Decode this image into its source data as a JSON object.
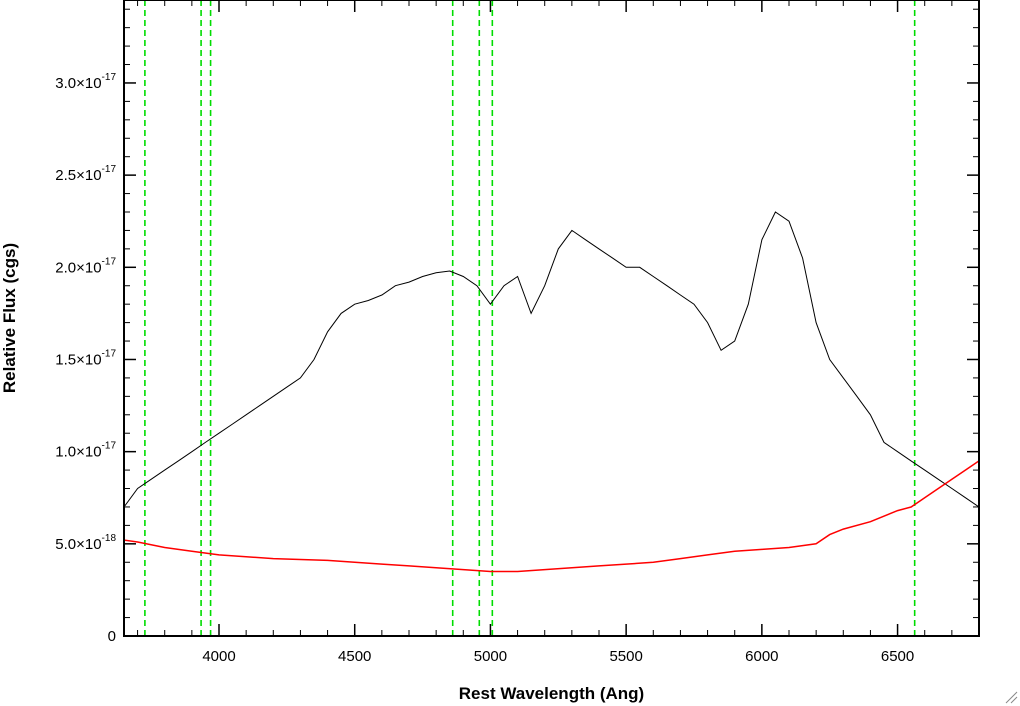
{
  "chart_data": {
    "type": "line",
    "title": "",
    "xlabel": "Rest Wavelength (Ang)",
    "ylabel": "Relative Flux (cgs)",
    "xlim": [
      3650,
      6800
    ],
    "ylim": [
      0,
      3.45e-17
    ],
    "x_ticks": [
      {
        "value": 4000,
        "label": "4000"
      },
      {
        "value": 4500,
        "label": "4500"
      },
      {
        "value": 5000,
        "label": "5000"
      },
      {
        "value": 5500,
        "label": "5500"
      },
      {
        "value": 6000,
        "label": "6000"
      },
      {
        "value": 6500,
        "label": "6500"
      }
    ],
    "y_ticks": [
      {
        "value": 0,
        "mantissa": "0",
        "exponent": ""
      },
      {
        "value": 5e-18,
        "mantissa": "5.0×10",
        "exponent": "-18"
      },
      {
        "value": 1e-17,
        "mantissa": "1.0×10",
        "exponent": "-17"
      },
      {
        "value": 1.5e-17,
        "mantissa": "1.5×10",
        "exponent": "-17"
      },
      {
        "value": 2e-17,
        "mantissa": "2.0×10",
        "exponent": "-17"
      },
      {
        "value": 2.5e-17,
        "mantissa": "2.5×10",
        "exponent": "-17"
      },
      {
        "value": 3e-17,
        "mantissa": "3.0×10",
        "exponent": "-17"
      }
    ],
    "grid": false,
    "legend": "none",
    "reference_lines": {
      "color": "#00dd00",
      "style": "dashed",
      "x": [
        3727,
        3934,
        3969,
        4861,
        4959,
        5007,
        6563
      ]
    },
    "series": [
      {
        "color": "#000000",
        "x": [
          3650,
          3700,
          3750,
          3800,
          3850,
          3900,
          3950,
          4000,
          4050,
          4100,
          4150,
          4200,
          4250,
          4300,
          4350,
          4400,
          4450,
          4500,
          4550,
          4600,
          4650,
          4700,
          4750,
          4800,
          4850,
          4900,
          4950,
          5000,
          5050,
          5100,
          5150,
          5200,
          5250,
          5300,
          5350,
          5400,
          5450,
          5500,
          5550,
          5600,
          5650,
          5700,
          5750,
          5800,
          5850,
          5900,
          5950,
          6000,
          6050,
          6100,
          6150,
          6200,
          6250,
          6300,
          6350,
          6400,
          6450,
          6500,
          6550,
          6600,
          6650,
          6700,
          6750,
          6800
        ],
        "y": [
          7e-18,
          8e-18,
          8.5e-18,
          9e-18,
          9.5e-18,
          1e-17,
          1.05e-17,
          1.1e-17,
          1.15e-17,
          1.2e-17,
          1.25e-17,
          1.3e-17,
          1.35e-17,
          1.4e-17,
          1.5e-17,
          1.65e-17,
          1.75e-17,
          1.8e-17,
          1.82e-17,
          1.85e-17,
          1.9e-17,
          1.92e-17,
          1.95e-17,
          1.97e-17,
          1.98e-17,
          1.95e-17,
          1.9e-17,
          1.8e-17,
          1.9e-17,
          1.95e-17,
          1.75e-17,
          1.9e-17,
          2.1e-17,
          2.2e-17,
          2.15e-17,
          2.1e-17,
          2.05e-17,
          2e-17,
          2e-17,
          1.95e-17,
          1.9e-17,
          1.85e-17,
          1.8e-17,
          1.7e-17,
          1.55e-17,
          1.6e-17,
          1.8e-17,
          2.15e-17,
          2.3e-17,
          2.25e-17,
          2.05e-17,
          1.7e-17,
          1.5e-17,
          1.4e-17,
          1.3e-17,
          1.2e-17,
          1.05e-17,
          1e-17,
          9.5e-18,
          9e-18,
          8.5e-18,
          8e-18,
          7.5e-18,
          7e-18
        ]
      },
      {
        "color": "#ff0000",
        "x": [
          3650,
          3700,
          3800,
          3900,
          4000,
          4100,
          4200,
          4300,
          4400,
          4500,
          4600,
          4700,
          4800,
          4900,
          5000,
          5100,
          5200,
          5300,
          5400,
          5500,
          5600,
          5700,
          5800,
          5900,
          6000,
          6100,
          6200,
          6250,
          6300,
          6400,
          6500,
          6550,
          6600,
          6650,
          6700,
          6750,
          6800
        ],
        "y": [
          5.2e-18,
          5.1e-18,
          4.8e-18,
          4.6e-18,
          4.4e-18,
          4.3e-18,
          4.2e-18,
          4.15e-18,
          4.1e-18,
          4e-18,
          3.9e-18,
          3.8e-18,
          3.7e-18,
          3.6e-18,
          3.5e-18,
          3.5e-18,
          3.6e-18,
          3.7e-18,
          3.8e-18,
          3.9e-18,
          4e-18,
          4.2e-18,
          4.4e-18,
          4.6e-18,
          4.7e-18,
          4.8e-18,
          5e-18,
          5.5e-18,
          5.8e-18,
          6.2e-18,
          6.8e-18,
          7e-18,
          7.5e-18,
          8e-18,
          8.5e-18,
          9e-18,
          9.5e-18
        ]
      }
    ]
  }
}
